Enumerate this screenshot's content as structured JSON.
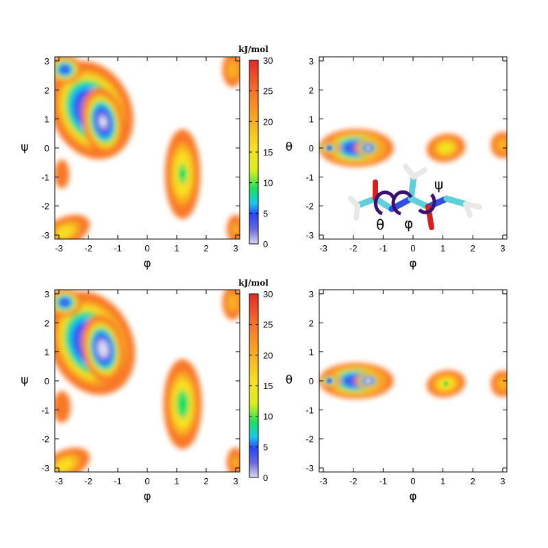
{
  "chart_data": [
    {
      "type": "heatmap",
      "xlabel": "φ",
      "ylabel": "ψ",
      "xlim": [
        -3.14,
        3.14
      ],
      "ylim": [
        -3.14,
        3.14
      ],
      "xticks": [
        -3,
        -2,
        -1,
        0,
        1,
        2,
        3
      ],
      "yticks": [
        -3,
        -2,
        -1,
        0,
        1,
        2,
        3
      ],
      "colorbar": {
        "label": "kJ/mol",
        "range": [
          0,
          30
        ],
        "ticks": [
          0,
          5,
          10,
          15,
          20,
          25,
          30
        ]
      },
      "minima": [
        {
          "x": -1.5,
          "y": 0.9,
          "value": 1
        },
        {
          "x": -2.8,
          "y": 2.7,
          "value": 4
        },
        {
          "x": 1.2,
          "y": -0.9,
          "value": 11
        }
      ]
    },
    {
      "type": "heatmap",
      "xlabel": "φ",
      "ylabel": "θ",
      "xlim": [
        -3.14,
        3.14
      ],
      "ylim": [
        -3.14,
        3.14
      ],
      "xticks": [
        -3,
        -2,
        -1,
        0,
        1,
        2,
        3
      ],
      "yticks": [
        -3,
        -2,
        -1,
        0,
        1,
        2,
        3
      ],
      "minima": [
        {
          "x": -1.5,
          "y": 0.0,
          "value": 2
        },
        {
          "x": -2.8,
          "y": 0.0,
          "value": 6
        },
        {
          "x": 1.1,
          "y": 0.0,
          "value": 13
        }
      ],
      "annotations": [
        "θ",
        "φ",
        "ψ"
      ]
    },
    {
      "type": "heatmap",
      "xlabel": "φ",
      "ylabel": "ψ",
      "xlim": [
        -3.14,
        3.14
      ],
      "ylim": [
        -3.14,
        3.14
      ],
      "xticks": [
        -3,
        -2,
        -1,
        0,
        1,
        2,
        3
      ],
      "yticks": [
        -3,
        -2,
        -1,
        0,
        1,
        2,
        3
      ],
      "colorbar": {
        "label": "kJ/mol",
        "range": [
          0,
          30
        ],
        "ticks": [
          0,
          5,
          10,
          15,
          20,
          25,
          30
        ]
      },
      "minima": [
        {
          "x": -1.5,
          "y": 1.1,
          "value": 0
        },
        {
          "x": -2.8,
          "y": 2.7,
          "value": 4
        },
        {
          "x": 1.2,
          "y": -0.8,
          "value": 10
        }
      ]
    },
    {
      "type": "heatmap",
      "xlabel": "φ",
      "ylabel": "θ",
      "xlim": [
        -3.14,
        3.14
      ],
      "ylim": [
        -3.14,
        3.14
      ],
      "xticks": [
        -3,
        -2,
        -1,
        0,
        1,
        2,
        3
      ],
      "yticks": [
        -3,
        -2,
        -1,
        0,
        1,
        2,
        3
      ],
      "minima": [
        {
          "x": -1.5,
          "y": 0.0,
          "value": 1
        },
        {
          "x": -2.8,
          "y": 0.0,
          "value": 6
        },
        {
          "x": 1.1,
          "y": -0.1,
          "value": 12
        }
      ]
    }
  ]
}
